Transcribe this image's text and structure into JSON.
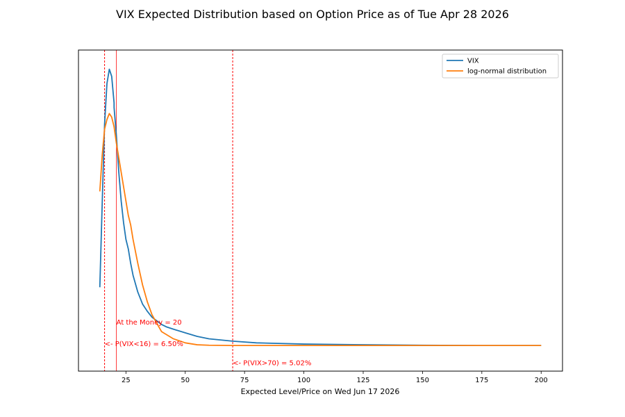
{
  "colors": {
    "vix": "#1f77b4",
    "lognormal": "#ff7f0e",
    "markers": "#ff0000",
    "axis": "#000000",
    "background": "#ffffff"
  },
  "chart_data": {
    "type": "line",
    "title": "VIX Expected Distribution based on Option Price as of Tue Apr 28 2026",
    "xlabel": "Expected Level/Price on Wed Jun 17 2026",
    "ylabel": "",
    "xlim": [
      5,
      209
    ],
    "ylim": [
      -0.005,
      0.129
    ],
    "y_ticks_shown": false,
    "x_ticks": [
      25,
      50,
      75,
      100,
      125,
      150,
      175,
      200
    ],
    "x_tick_labels": [
      "25",
      "50",
      "75",
      "100",
      "125",
      "150",
      "175",
      "200"
    ],
    "grid": false,
    "legend": {
      "position": "top-right",
      "entries": [
        "VIX",
        "log-normal distribution"
      ]
    },
    "series": [
      {
        "name": "VIX",
        "x": [
          14,
          15,
          16,
          17,
          18,
          19,
          20,
          20.01,
          21,
          22,
          23,
          24,
          25,
          26,
          27,
          28,
          30,
          32,
          34,
          36,
          38,
          40,
          42,
          45,
          50,
          55,
          60,
          70,
          80,
          100,
          125,
          150,
          175,
          200
        ],
        "y": [
          0.03,
          0.065,
          0.098,
          0.115,
          0.121,
          0.118,
          0.107,
          0.105,
          0.093,
          0.078,
          0.066,
          0.057,
          0.05,
          0.046,
          0.04,
          0.035,
          0.028,
          0.023,
          0.02,
          0.0175,
          0.016,
          0.0145,
          0.0135,
          0.0125,
          0.011,
          0.0095,
          0.0085,
          0.0075,
          0.0068,
          0.0063,
          0.006,
          0.0058,
          0.0057,
          0.0057
        ]
      },
      {
        "name": "log-normal distribution",
        "x": [
          14,
          15,
          16,
          17,
          18,
          19,
          20,
          21,
          22,
          23,
          24,
          25,
          26,
          27,
          28,
          30,
          32,
          34,
          36,
          38,
          40,
          45,
          50,
          55,
          60,
          70,
          80,
          100,
          125,
          150,
          175,
          200
        ],
        "y": [
          0.07,
          0.085,
          0.096,
          0.1,
          0.1025,
          0.101,
          0.097,
          0.09,
          0.084,
          0.078,
          0.072,
          0.066,
          0.06,
          0.056,
          0.05,
          0.04,
          0.031,
          0.024,
          0.0185,
          0.015,
          0.0115,
          0.0085,
          0.0068,
          0.006,
          0.0058,
          0.0057,
          0.0057,
          0.0057,
          0.0057,
          0.0057,
          0.0057,
          0.0057
        ]
      }
    ],
    "vertical_lines": [
      {
        "x": 16,
        "style": "dashed"
      },
      {
        "x": 21,
        "style": "solid"
      },
      {
        "x": 70,
        "style": "dashed"
      }
    ],
    "annotations": [
      {
        "text": "At the Money = 20",
        "x": 21,
        "y": 0.0145
      },
      {
        "text": "<- P(VIX<16) = 6.50%",
        "x": 16,
        "y": 0.0055
      },
      {
        "text": "<- P(VIX>70) = 5.02%",
        "x": 70,
        "y": -0.0025
      }
    ]
  }
}
